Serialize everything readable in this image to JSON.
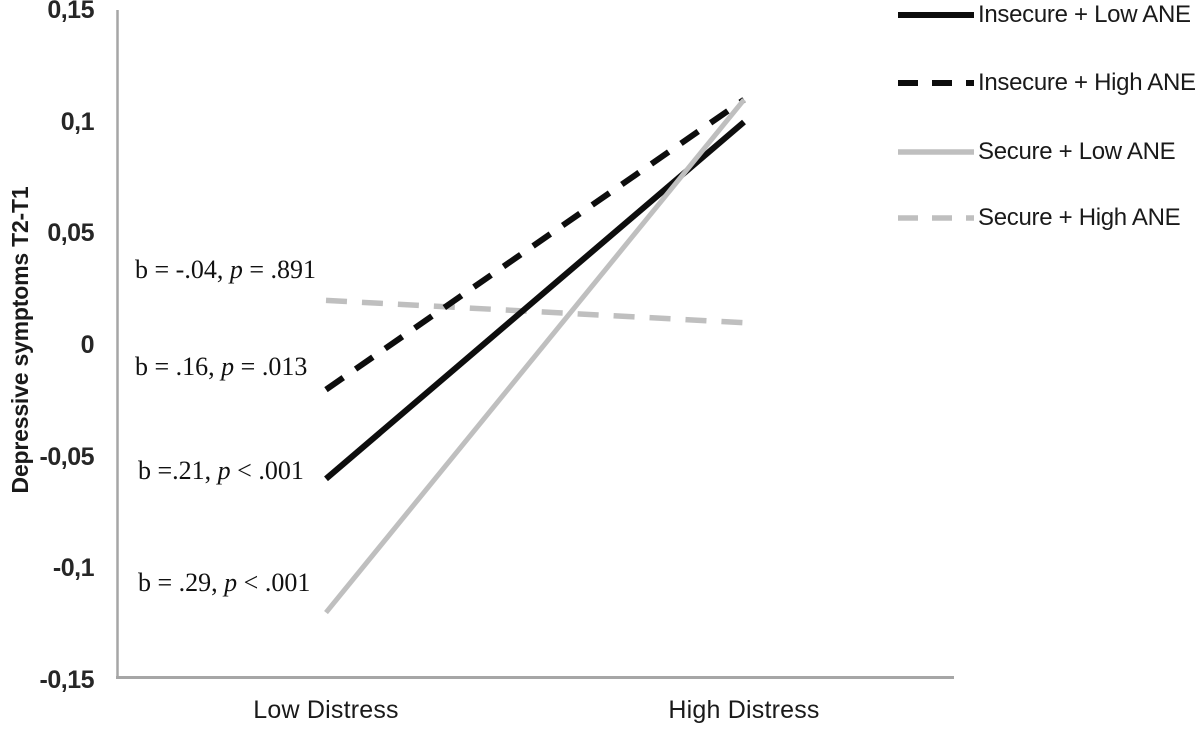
{
  "chart_data": {
    "type": "line",
    "title": "",
    "xlabel": "",
    "ylabel": "Depressive symptoms T2-T1",
    "categories": [
      "Low Distress",
      "High Distress"
    ],
    "series": [
      {
        "name": "Insecure + Low ANE",
        "values": [
          -0.06,
          0.1
        ],
        "color": "#0d0d0d",
        "style": "solid"
      },
      {
        "name": "Insecure + High ANE",
        "values": [
          -0.02,
          0.11
        ],
        "color": "#0d0d0d",
        "style": "dashed"
      },
      {
        "name": "Secure + Low ANE",
        "values": [
          -0.12,
          0.11
        ],
        "color": "#bfbfbf",
        "style": "solid"
      },
      {
        "name": "Secure + High ANE",
        "values": [
          0.02,
          0.01
        ],
        "color": "#bfbfbf",
        "style": "dashed"
      }
    ],
    "ylim": [
      -0.15,
      0.15
    ],
    "y_tick_values": [
      0.15,
      0.1,
      0.05,
      0,
      -0.05,
      -0.1,
      -0.15
    ],
    "y_tick_labels": [
      "0,15",
      "0,1",
      "0,05",
      "0",
      "-0,05",
      "-0,1",
      "-0,15"
    ],
    "grid": false,
    "legend_position": "top-right",
    "axis_color": "#a6a6a6",
    "annotations": [
      {
        "prefix": "b = -.04, ",
        "p": "p",
        "suffix": " = .891",
        "refers_to": "Secure + High ANE"
      },
      {
        "prefix": "b = .16, ",
        "p": "p",
        "suffix": " = .013",
        "refers_to": "Insecure + High ANE"
      },
      {
        "prefix": "b =.21, ",
        "p": "p",
        "suffix": " < .001",
        "refers_to": "Insecure + Low ANE"
      },
      {
        "prefix": "b = .29, ",
        "p": "p",
        "suffix": " < .001",
        "refers_to": "Secure + Low ANE"
      }
    ]
  }
}
